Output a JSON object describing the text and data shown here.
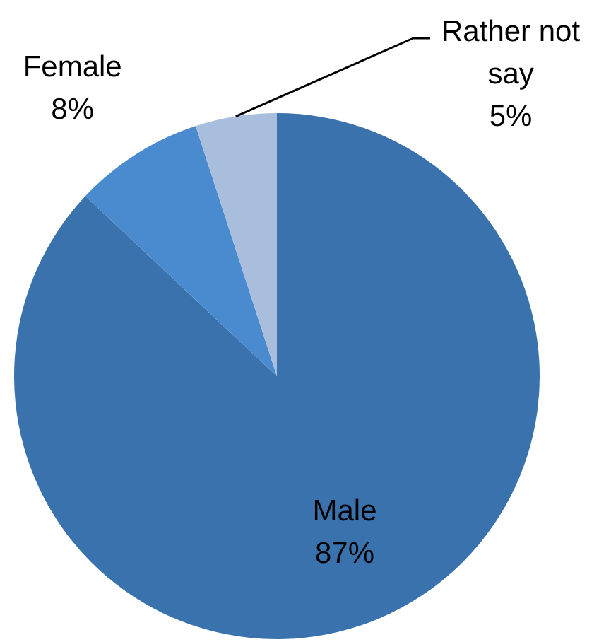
{
  "chart_data": {
    "type": "pie",
    "categories": [
      "Male",
      "Female",
      "Rather not say"
    ],
    "values": [
      87,
      8,
      5
    ],
    "value_labels": [
      "87%",
      "8%",
      "5%"
    ],
    "colors": [
      "#3a72ae",
      "#4a8bd0",
      "#a9bedd"
    ],
    "legend": false
  }
}
